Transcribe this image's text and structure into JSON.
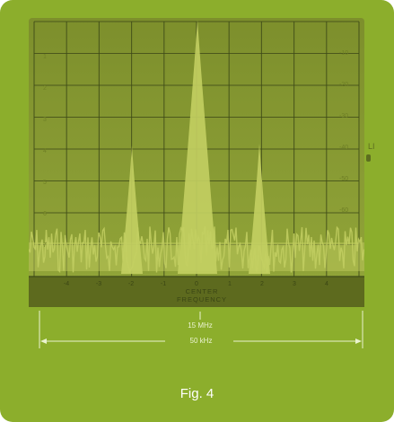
{
  "display": {
    "row_labels_left": [
      "1",
      "2",
      "3",
      "4",
      "5",
      "6",
      "7"
    ],
    "row_labels_right": [
      "-10",
      "-20",
      "-30",
      "-40",
      "-50",
      "-60"
    ],
    "column_labels": [
      "-4",
      "-3",
      "-2",
      "-1",
      "0",
      "1",
      "2",
      "3",
      "4"
    ],
    "center_label_line1": "CENTER",
    "center_label_line2": "FREQUENCY",
    "right_edge_text": "LI"
  },
  "scale": {
    "center_value": "15 MHz",
    "span_value": "50 kHz"
  },
  "caption": "Fig. 4",
  "colors": {
    "card_background": "#8cae2c",
    "screen_background": "#8a9b34",
    "grid_lines": "#3e4a18",
    "trace": "#c3cf62",
    "scale_text": "#eaf3cf"
  }
}
